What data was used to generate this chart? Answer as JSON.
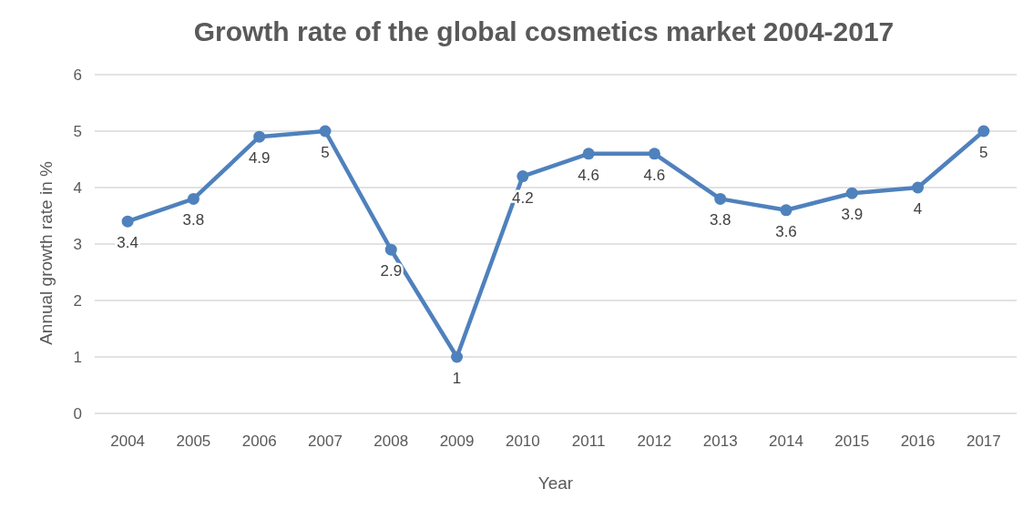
{
  "chart_data": {
    "type": "line",
    "title": "Growth rate of the global cosmetics market 2004-2017",
    "xlabel": "Year",
    "ylabel": "Annual growth rate in %",
    "categories": [
      "2004",
      "2005",
      "2006",
      "2007",
      "2008",
      "2009",
      "2010",
      "2011",
      "2012",
      "2013",
      "2014",
      "2015",
      "2016",
      "2017"
    ],
    "series": [
      {
        "color": "#4f81bd",
        "values": [
          3.4,
          3.8,
          4.9,
          5,
          2.9,
          1,
          4.2,
          4.6,
          4.6,
          3.8,
          3.6,
          3.9,
          4,
          5
        ]
      }
    ],
    "ylim": [
      0,
      6
    ],
    "yticks": [
      0,
      1,
      2,
      3,
      4,
      5,
      6
    ],
    "grid": "y",
    "marker": "circle",
    "line_style": "solid",
    "data_labels": true
  }
}
